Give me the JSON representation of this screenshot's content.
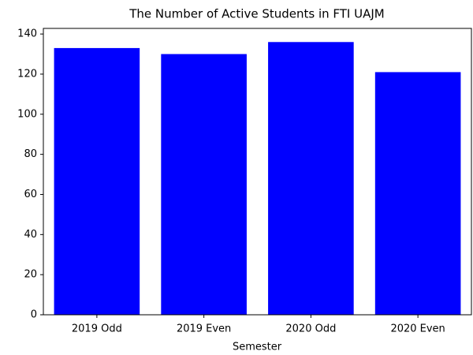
{
  "chart_data": {
    "type": "bar",
    "title": "The Number of Active Students in FTI UAJM",
    "xlabel": "Semester",
    "categories": [
      "2019 Odd",
      "2019 Even",
      "2020 Odd",
      "2020 Even"
    ],
    "values": [
      133,
      130,
      136,
      121
    ],
    "color": "#0000ff",
    "ylim": [
      0,
      142.8
    ],
    "yticks": [
      0,
      20,
      40,
      60,
      80,
      100,
      120,
      140
    ],
    "grid": false
  }
}
